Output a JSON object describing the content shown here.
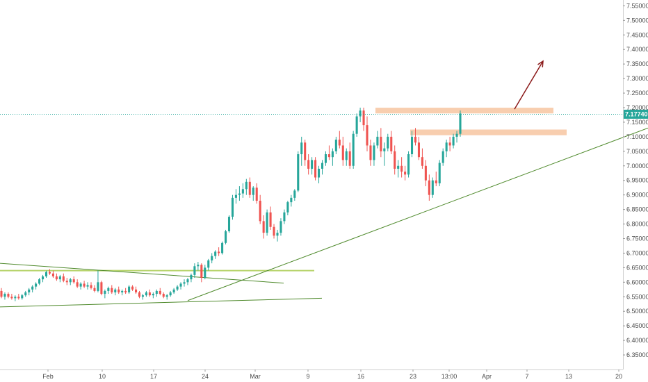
{
  "chart_data": {
    "type": "candlestick",
    "symbol": "",
    "ylim": [
      6.3,
      7.57
    ],
    "y_ticks": [
      "7.55000",
      "7.50000",
      "7.45000",
      "7.40000",
      "7.35000",
      "7.30000",
      "7.25000",
      "7.20000",
      "7.15000",
      "7.10000",
      "7.05000",
      "7.00000",
      "6.95000",
      "6.90000",
      "6.85000",
      "6.80000",
      "6.75000",
      "6.70000",
      "6.65000",
      "6.60000",
      "6.55000",
      "6.50000",
      "6.45000",
      "6.40000",
      "6.35000"
    ],
    "x_ticks": [
      "Feb",
      "10",
      "17",
      "24",
      "Mar",
      "9",
      "16",
      "23",
      "13:00",
      "Apr",
      "7",
      "13",
      "20"
    ],
    "last_price": {
      "value": 7.1774,
      "label": "7.17740"
    },
    "grid": false,
    "colors": {
      "up": "#26a69a",
      "down": "#ef5350",
      "trendline": "#4f8a2c",
      "support_line": "#b6d36b",
      "resistance_zone": "#f7c9a6",
      "arrow": "#8b1a1a",
      "price_line": "#26a69a"
    },
    "trend_segments": [
      {
        "name": "channel-upper",
        "from": {
          "t": 0.0,
          "y": 6.665
        },
        "to": {
          "t": 0.408,
          "y": 6.597
        }
      },
      {
        "name": "channel-lower",
        "from": {
          "t": 0.0,
          "y": 6.515
        },
        "to": {
          "t": 0.463,
          "y": 6.545
        }
      },
      {
        "name": "ascending-trendline",
        "from": {
          "t": 0.27,
          "y": 6.537
        },
        "to": {
          "t": 0.932,
          "y": 7.13
        }
      }
    ],
    "horizontal_levels": [
      {
        "name": "support-level",
        "from_t": 0.0,
        "to_t": 0.452,
        "y": 6.64
      }
    ],
    "zones": [
      {
        "name": "upper-resistance-zone",
        "from_t": 0.54,
        "to_t": 0.796,
        "y_low": 7.185,
        "y_high": 7.195
      },
      {
        "name": "lower-resistance-zone",
        "from_t": 0.59,
        "to_t": 0.815,
        "y_low": 7.11,
        "y_high": 7.12
      }
    ],
    "projection_arrow": {
      "from": {
        "t": 0.74,
        "y": 7.195
      },
      "to": {
        "t": 0.781,
        "y": 7.36
      }
    },
    "candles": [
      [
        6.57,
        6.58,
        6.545,
        6.55
      ],
      [
        6.55,
        6.565,
        6.54,
        6.56
      ],
      [
        6.56,
        6.565,
        6.545,
        6.55
      ],
      [
        6.55,
        6.56,
        6.54,
        6.545
      ],
      [
        6.545,
        6.555,
        6.535,
        6.55
      ],
      [
        6.55,
        6.56,
        6.54,
        6.545
      ],
      [
        6.545,
        6.56,
        6.54,
        6.555
      ],
      [
        6.555,
        6.57,
        6.55,
        6.565
      ],
      [
        6.565,
        6.58,
        6.555,
        6.575
      ],
      [
        6.575,
        6.59,
        6.565,
        6.585
      ],
      [
        6.585,
        6.6,
        6.575,
        6.595
      ],
      [
        6.595,
        6.615,
        6.59,
        6.61
      ],
      [
        6.61,
        6.625,
        6.6,
        6.62
      ],
      [
        6.62,
        6.64,
        6.615,
        6.635
      ],
      [
        6.635,
        6.645,
        6.625,
        6.63
      ],
      [
        6.63,
        6.64,
        6.615,
        6.62
      ],
      [
        6.62,
        6.63,
        6.605,
        6.61
      ],
      [
        6.61,
        6.625,
        6.6,
        6.62
      ],
      [
        6.62,
        6.63,
        6.6,
        6.605
      ],
      [
        6.605,
        6.615,
        6.59,
        6.6
      ],
      [
        6.6,
        6.615,
        6.59,
        6.61
      ],
      [
        6.61,
        6.62,
        6.595,
        6.6
      ],
      [
        6.6,
        6.61,
        6.58,
        6.585
      ],
      [
        6.585,
        6.6,
        6.575,
        6.595
      ],
      [
        6.595,
        6.605,
        6.58,
        6.585
      ],
      [
        6.585,
        6.6,
        6.575,
        6.59
      ],
      [
        6.59,
        6.6,
        6.575,
        6.58
      ],
      [
        6.58,
        6.59,
        6.565,
        6.57
      ],
      [
        6.57,
        6.64,
        6.565,
        6.6
      ],
      [
        6.6,
        6.605,
        6.555,
        6.56
      ],
      [
        6.56,
        6.575,
        6.545,
        6.57
      ],
      [
        6.57,
        6.585,
        6.56,
        6.58
      ],
      [
        6.58,
        6.59,
        6.56,
        6.565
      ],
      [
        6.565,
        6.58,
        6.555,
        6.575
      ],
      [
        6.575,
        6.585,
        6.56,
        6.565
      ],
      [
        6.565,
        6.575,
        6.555,
        6.57
      ],
      [
        6.57,
        6.58,
        6.56,
        6.565
      ],
      [
        6.565,
        6.59,
        6.56,
        6.585
      ],
      [
        6.585,
        6.59,
        6.57,
        6.575
      ],
      [
        6.575,
        6.585,
        6.56,
        6.565
      ],
      [
        6.565,
        6.57,
        6.545,
        6.55
      ],
      [
        6.55,
        6.56,
        6.54,
        6.555
      ],
      [
        6.555,
        6.57,
        6.55,
        6.565
      ],
      [
        6.565,
        6.575,
        6.55,
        6.555
      ],
      [
        6.555,
        6.565,
        6.545,
        6.56
      ],
      [
        6.56,
        6.575,
        6.55,
        6.57
      ],
      [
        6.57,
        6.58,
        6.555,
        6.56
      ],
      [
        6.56,
        6.565,
        6.545,
        6.55
      ],
      [
        6.55,
        6.56,
        6.54,
        6.555
      ],
      [
        6.555,
        6.57,
        6.55,
        6.565
      ],
      [
        6.565,
        6.58,
        6.56,
        6.575
      ],
      [
        6.575,
        6.59,
        6.57,
        6.585
      ],
      [
        6.585,
        6.6,
        6.575,
        6.595
      ],
      [
        6.595,
        6.61,
        6.585,
        6.6
      ],
      [
        6.6,
        6.615,
        6.59,
        6.61
      ],
      [
        6.61,
        6.63,
        6.6,
        6.625
      ],
      [
        6.625,
        6.665,
        6.615,
        6.655
      ],
      [
        6.655,
        6.67,
        6.64,
        6.66
      ],
      [
        6.66,
        6.665,
        6.6,
        6.615
      ],
      [
        6.615,
        6.66,
        6.61,
        6.65
      ],
      [
        6.65,
        6.68,
        6.64,
        6.675
      ],
      [
        6.675,
        6.7,
        6.665,
        6.69
      ],
      [
        6.69,
        6.71,
        6.68,
        6.705
      ],
      [
        6.705,
        6.72,
        6.69,
        6.7
      ],
      [
        6.7,
        6.74,
        6.695,
        6.735
      ],
      [
        6.735,
        6.78,
        6.73,
        6.775
      ],
      [
        6.775,
        6.83,
        6.77,
        6.825
      ],
      [
        6.825,
        6.9,
        6.815,
        6.89
      ],
      [
        6.89,
        6.92,
        6.87,
        6.9
      ],
      [
        6.9,
        6.93,
        6.88,
        6.905
      ],
      [
        6.905,
        6.94,
        6.89,
        6.92
      ],
      [
        6.92,
        6.955,
        6.9,
        6.945
      ],
      [
        6.945,
        6.96,
        6.89,
        6.9
      ],
      [
        6.9,
        6.93,
        6.88,
        6.925
      ],
      [
        6.925,
        6.94,
        6.87,
        6.88
      ],
      [
        6.88,
        6.9,
        6.8,
        6.81
      ],
      [
        6.81,
        6.83,
        6.75,
        6.77
      ],
      [
        6.77,
        6.85,
        6.76,
        6.84
      ],
      [
        6.84,
        6.86,
        6.78,
        6.79
      ],
      [
        6.79,
        6.8,
        6.75,
        6.76
      ],
      [
        6.76,
        6.78,
        6.74,
        6.77
      ],
      [
        6.77,
        6.82,
        6.76,
        6.81
      ],
      [
        6.81,
        6.85,
        6.8,
        6.84
      ],
      [
        6.84,
        6.88,
        6.83,
        6.875
      ],
      [
        6.875,
        6.9,
        6.86,
        6.89
      ],
      [
        6.89,
        6.92,
        6.88,
        6.915
      ],
      [
        6.915,
        7.05,
        6.91,
        7.04
      ],
      [
        7.04,
        7.1,
        7.0,
        7.08
      ],
      [
        7.08,
        7.09,
        7.0,
        7.02
      ],
      [
        7.02,
        7.04,
        6.97,
        6.99
      ],
      [
        6.99,
        7.03,
        6.97,
        7.02
      ],
      [
        7.02,
        7.03,
        6.95,
        6.96
      ],
      [
        6.96,
        7.0,
        6.94,
        6.99
      ],
      [
        6.99,
        7.02,
        6.97,
        7.01
      ],
      [
        7.01,
        7.05,
        7.0,
        7.04
      ],
      [
        7.04,
        7.07,
        7.02,
        7.03
      ],
      [
        7.03,
        7.06,
        7.0,
        7.05
      ],
      [
        7.05,
        7.1,
        7.04,
        7.09
      ],
      [
        7.09,
        7.12,
        7.06,
        7.07
      ],
      [
        7.07,
        7.1,
        7.0,
        7.02
      ],
      [
        7.02,
        7.06,
        7.0,
        7.05
      ],
      [
        7.05,
        7.08,
        6.99,
        7.0
      ],
      [
        7.0,
        7.12,
        6.99,
        7.11
      ],
      [
        7.11,
        7.18,
        7.1,
        7.17
      ],
      [
        7.17,
        7.2,
        7.15,
        7.19
      ],
      [
        7.19,
        7.2,
        7.12,
        7.14
      ],
      [
        7.14,
        7.17,
        7.05,
        7.07
      ],
      [
        7.07,
        7.09,
        7.0,
        7.02
      ],
      [
        7.02,
        7.08,
        7.0,
        7.07
      ],
      [
        7.07,
        7.12,
        7.06,
        7.1
      ],
      [
        7.1,
        7.13,
        7.03,
        7.05
      ],
      [
        7.05,
        7.08,
        7.0,
        7.06
      ],
      [
        7.06,
        7.11,
        7.05,
        7.1
      ],
      [
        7.1,
        7.12,
        7.04,
        7.05
      ],
      [
        7.05,
        7.07,
        6.97,
        6.99
      ],
      [
        6.99,
        7.02,
        6.96,
        7.0
      ],
      [
        7.0,
        7.03,
        6.96,
        6.98
      ],
      [
        6.98,
        7.0,
        6.95,
        6.97
      ],
      [
        6.97,
        7.05,
        6.96,
        7.04
      ],
      [
        7.04,
        7.12,
        7.03,
        7.1
      ],
      [
        7.1,
        7.13,
        7.07,
        7.08
      ],
      [
        7.08,
        7.1,
        7.02,
        7.03
      ],
      [
        7.03,
        7.06,
        6.99,
        7.0
      ],
      [
        7.0,
        7.02,
        6.93,
        6.95
      ],
      [
        6.95,
        6.97,
        6.88,
        6.9
      ],
      [
        6.9,
        6.96,
        6.89,
        6.95
      ],
      [
        6.95,
        6.98,
        6.93,
        6.94
      ],
      [
        6.94,
        7.02,
        6.93,
        7.01
      ],
      [
        7.01,
        7.06,
        7.0,
        7.05
      ],
      [
        7.05,
        7.09,
        7.03,
        7.08
      ],
      [
        7.08,
        7.1,
        7.05,
        7.07
      ],
      [
        7.07,
        7.11,
        7.06,
        7.1
      ],
      [
        7.1,
        7.12,
        7.08,
        7.11
      ],
      [
        7.11,
        7.19,
        7.1,
        7.18
      ]
    ]
  }
}
